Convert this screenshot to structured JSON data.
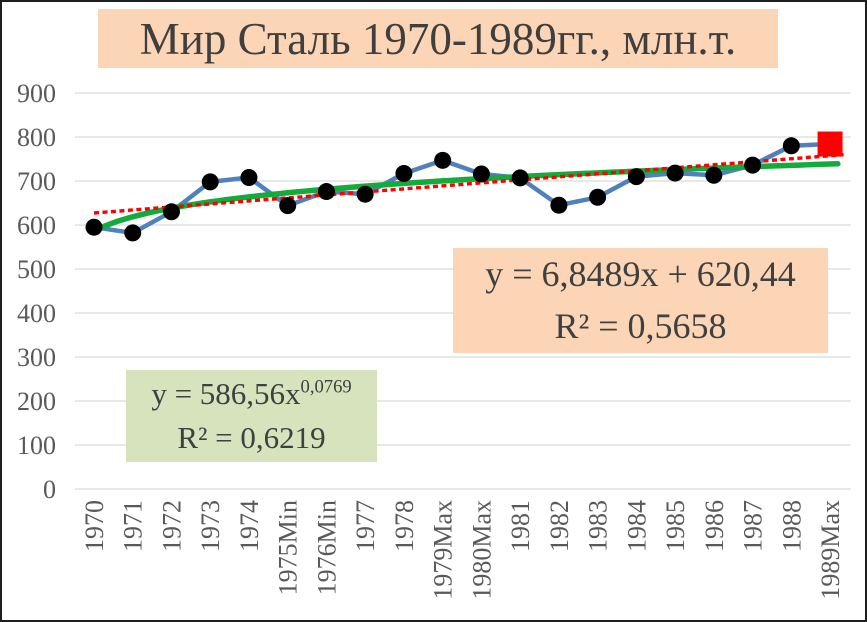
{
  "chart_data": {
    "type": "line",
    "title": "Мир Сталь 1970-1989гг., млн.т.",
    "categories": [
      "1970",
      "1971",
      "1972",
      "1973",
      "1974",
      "1975Min",
      "1976Min",
      "1977",
      "1978",
      "1979Max",
      "1980Max",
      "1981",
      "1982",
      "1983",
      "1984",
      "1985",
      "1986",
      "1987",
      "1988",
      "1989Max"
    ],
    "series": [
      {
        "name": "Мир Сталь, млн.т.",
        "values": [
          595,
          582,
          630,
          698,
          708,
          644,
          676,
          670,
          717,
          747,
          716,
          707,
          645,
          663,
          710,
          718,
          713,
          736,
          780,
          784
        ]
      }
    ],
    "ylabel": "",
    "xlabel": "",
    "ylim": [
      0,
      900
    ],
    "y_ticks": [
      0,
      100,
      200,
      300,
      400,
      500,
      600,
      700,
      800,
      900
    ],
    "grid": true,
    "legend_position": "none",
    "special_points": {
      "category": "1989Max",
      "marker": "red-square"
    },
    "trendlines": [
      {
        "kind": "linear",
        "slope": 6.8489,
        "intercept": 620.44,
        "r2": 0.5658,
        "style": "dashed"
      },
      {
        "kind": "power",
        "coefficient": 586.56,
        "exponent": 0.0769,
        "r2": 0.6219,
        "style": "solid"
      }
    ]
  },
  "annotations": {
    "linear": {
      "line1": "y = 6,8489x + 620,44",
      "line2": "R² = 0,5658"
    },
    "power": {
      "base": "y = 586,56x",
      "exponent": "0,0769",
      "line2": "R² = 0,6219"
    }
  },
  "colors": {
    "series_line": "#4F81BD",
    "marker": "#000000",
    "linear_trend": "#FF0000",
    "power_trend": "#12AC3C",
    "max_marker": "#FF0000",
    "title_bg": "#FBD5B5",
    "linear_label_bg": "#FBD5B5",
    "power_label_bg": "#D6E3BC",
    "grid": "#D9D9D9",
    "axis_text": "#595959",
    "title_text": "#3F3F3F",
    "equation_text": "#3E4041"
  }
}
